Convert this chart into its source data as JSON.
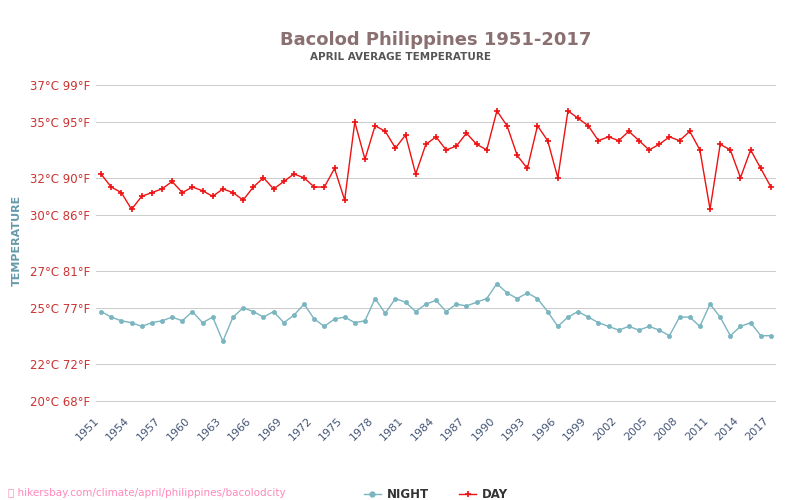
{
  "title": "Bacolod Philippines 1951-2017",
  "subtitle": "APRIL AVERAGE TEMPERATURE",
  "ylabel": "TEMPERATURE",
  "watermark": "hikersbay.com/climate/april/philippines/bacolodcity",
  "years": [
    1951,
    1952,
    1953,
    1954,
    1955,
    1956,
    1957,
    1958,
    1959,
    1960,
    1961,
    1962,
    1963,
    1964,
    1965,
    1966,
    1967,
    1968,
    1969,
    1970,
    1971,
    1972,
    1973,
    1974,
    1975,
    1976,
    1977,
    1978,
    1979,
    1980,
    1981,
    1982,
    1983,
    1984,
    1985,
    1986,
    1987,
    1988,
    1989,
    1990,
    1991,
    1992,
    1993,
    1994,
    1995,
    1996,
    1997,
    1998,
    1999,
    2000,
    2001,
    2002,
    2003,
    2004,
    2005,
    2006,
    2007,
    2008,
    2009,
    2010,
    2011,
    2012,
    2013,
    2014,
    2015,
    2016,
    2017
  ],
  "day_temps": [
    32.2,
    31.5,
    31.2,
    30.3,
    31.0,
    31.2,
    31.4,
    31.8,
    31.2,
    31.5,
    31.3,
    31.0,
    31.4,
    31.2,
    30.8,
    31.5,
    32.0,
    31.4,
    31.8,
    32.2,
    32.0,
    31.5,
    31.5,
    32.5,
    30.8,
    35.0,
    33.0,
    34.8,
    34.5,
    33.6,
    34.3,
    32.2,
    33.8,
    34.2,
    33.5,
    33.7,
    34.4,
    33.8,
    33.5,
    35.6,
    34.8,
    33.2,
    32.5,
    34.8,
    34.0,
    32.0,
    35.6,
    35.2,
    34.8,
    34.0,
    34.2,
    34.0,
    34.5,
    34.0,
    33.5,
    33.8,
    34.2,
    34.0,
    34.5,
    33.5,
    30.3,
    33.8,
    33.5,
    32.0,
    33.5,
    32.5,
    31.5
  ],
  "night_temps": [
    24.8,
    24.5,
    24.3,
    24.2,
    24.0,
    24.2,
    24.3,
    24.5,
    24.3,
    24.8,
    24.2,
    24.5,
    23.2,
    24.5,
    25.0,
    24.8,
    24.5,
    24.8,
    24.2,
    24.6,
    25.2,
    24.4,
    24.0,
    24.4,
    24.5,
    24.2,
    24.3,
    25.5,
    24.7,
    25.5,
    25.3,
    24.8,
    25.2,
    25.4,
    24.8,
    25.2,
    25.1,
    25.3,
    25.5,
    26.3,
    25.8,
    25.5,
    25.8,
    25.5,
    24.8,
    24.0,
    24.5,
    24.8,
    24.5,
    24.2,
    24.0,
    23.8,
    24.0,
    23.8,
    24.0,
    23.8,
    23.5,
    24.5,
    24.5,
    24.0,
    25.2,
    24.5,
    23.5,
    24.0,
    24.2,
    23.5,
    23.5
  ],
  "day_color": "#ee1111",
  "night_color": "#7ab5c0",
  "title_color": "#8a7070",
  "subtitle_color": "#555555",
  "ylabel_color": "#6699aa",
  "axis_tick_color": "#cc3333",
  "xtick_color": "#445577",
  "grid_color": "#cccccc",
  "background_color": "#ffffff",
  "watermark_color": "#ff88bb",
  "yticks_c": [
    20,
    22,
    25,
    27,
    30,
    32,
    35,
    37
  ],
  "yticks_f": [
    68,
    72,
    77,
    81,
    86,
    90,
    95,
    99
  ],
  "xticks": [
    1951,
    1954,
    1957,
    1960,
    1963,
    1966,
    1969,
    1972,
    1975,
    1978,
    1981,
    1984,
    1987,
    1990,
    1993,
    1996,
    1999,
    2002,
    2005,
    2008,
    2011,
    2014,
    2017
  ],
  "ylim": [
    19.5,
    37.8
  ],
  "xlim": [
    1950.5,
    2017.5
  ]
}
